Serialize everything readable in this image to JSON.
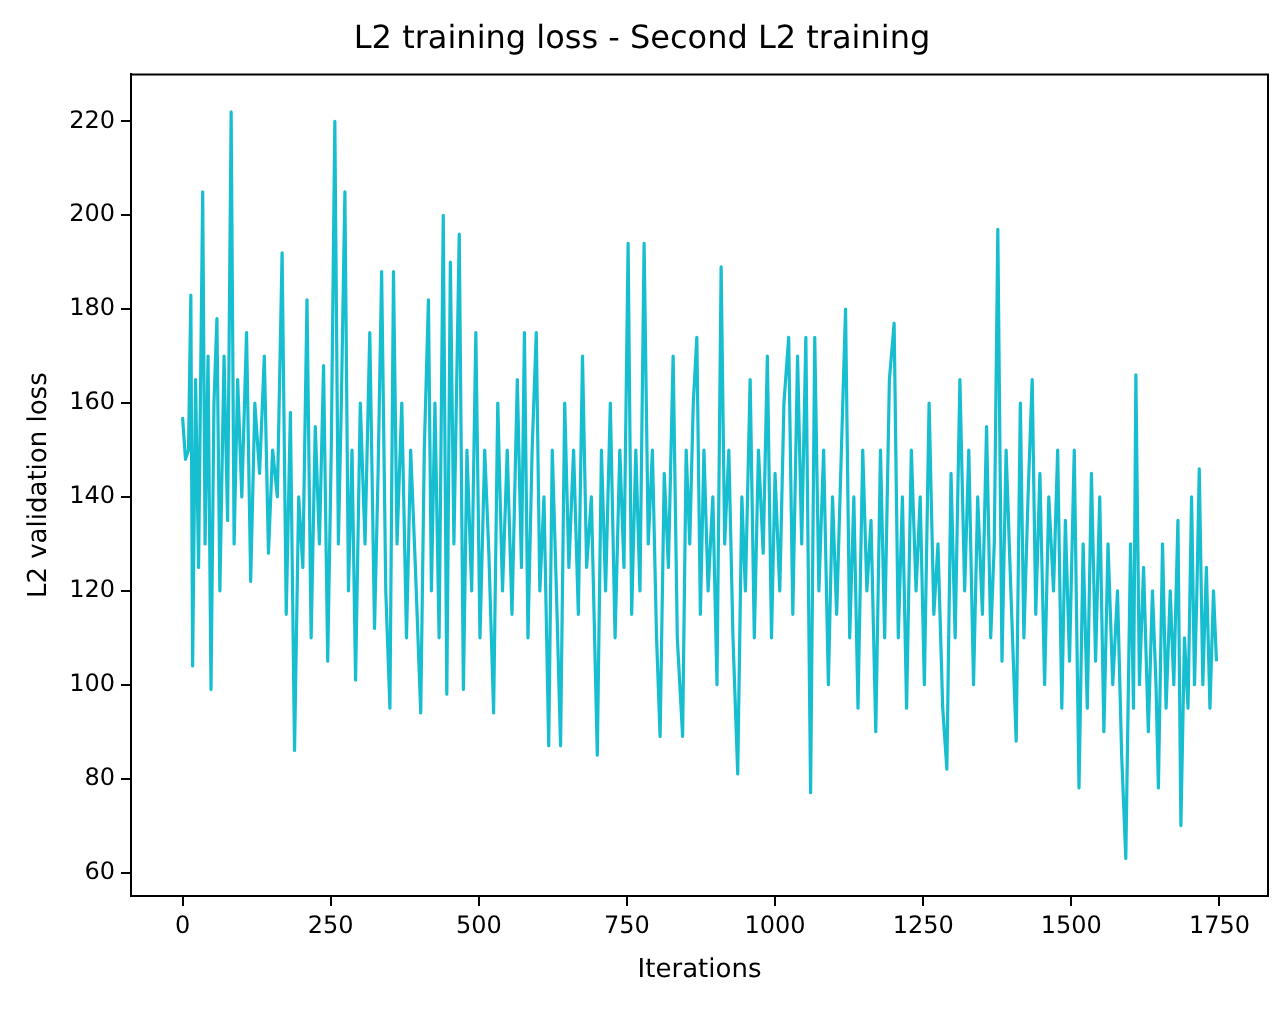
{
  "chart_data": {
    "type": "line",
    "title": "L2 training loss - Second L2 training",
    "xlabel": "Iterations",
    "ylabel": "L2 validation loss",
    "xlim": [
      -87,
      1832
    ],
    "xticks": [
      0,
      250,
      500,
      750,
      1000,
      1250,
      1500,
      1750
    ],
    "ylim": [
      55,
      230
    ],
    "yticks": [
      60,
      80,
      100,
      120,
      140,
      160,
      180,
      200,
      220
    ],
    "grid": false,
    "legend": false,
    "marker": "none",
    "line_style": "solid",
    "x": [
      0,
      5,
      10,
      14,
      17,
      22,
      27,
      34,
      38,
      43,
      48,
      53,
      58,
      63,
      70,
      76,
      82,
      87,
      93,
      100,
      108,
      115,
      122,
      130,
      138,
      145,
      152,
      160,
      168,
      175,
      182,
      189,
      196,
      203,
      210,
      217,
      224,
      231,
      238,
      245,
      251,
      257,
      263,
      268,
      274,
      280,
      286,
      292,
      300,
      308,
      316,
      324,
      330,
      336,
      343,
      350,
      356,
      362,
      370,
      378,
      385,
      393,
      402,
      408,
      415,
      420,
      426,
      433,
      440,
      446,
      452,
      458,
      467,
      474,
      480,
      488,
      495,
      502,
      510,
      517,
      525,
      532,
      540,
      548,
      556,
      565,
      572,
      577,
      583,
      590,
      597,
      603,
      610,
      618,
      624,
      631,
      638,
      645,
      652,
      660,
      668,
      675,
      682,
      690,
      700,
      707,
      714,
      722,
      730,
      738,
      745,
      752,
      758,
      765,
      772,
      779,
      786,
      793,
      800,
      806,
      813,
      820,
      828,
      835,
      844,
      850,
      856,
      862,
      868,
      874,
      880,
      887,
      895,
      902,
      909,
      915,
      922,
      929,
      937,
      944,
      950,
      958,
      965,
      972,
      980,
      987,
      994,
      1000,
      1008,
      1015,
      1023,
      1030,
      1038,
      1045,
      1052,
      1060,
      1067,
      1074,
      1082,
      1090,
      1097,
      1104,
      1112,
      1119,
      1126,
      1133,
      1140,
      1148,
      1155,
      1162,
      1170,
      1178,
      1185,
      1193,
      1201,
      1208,
      1215,
      1222,
      1230,
      1238,
      1245,
      1252,
      1260,
      1268,
      1275,
      1283,
      1290,
      1297,
      1304,
      1312,
      1320,
      1327,
      1335,
      1342,
      1350,
      1357,
      1364,
      1370,
      1376,
      1383,
      1390,
      1398,
      1407,
      1414,
      1420,
      1427,
      1434,
      1440,
      1447,
      1455,
      1462,
      1470,
      1477,
      1484,
      1490,
      1497,
      1505,
      1513,
      1520,
      1527,
      1534,
      1541,
      1548,
      1555,
      1562,
      1570,
      1578,
      1585,
      1592,
      1600,
      1605,
      1609,
      1615,
      1622,
      1630,
      1637,
      1643,
      1647,
      1654,
      1660,
      1667,
      1673,
      1680,
      1685,
      1691,
      1697,
      1703,
      1708,
      1712,
      1716,
      1722,
      1728,
      1734,
      1740,
      1745
    ],
    "series": [
      {
        "color": "#17becf",
        "values": [
          157,
          148,
          150,
          183,
          104,
          165,
          125,
          205,
          130,
          170,
          99,
          160,
          178,
          120,
          170,
          135,
          222,
          130,
          165,
          140,
          175,
          122,
          160,
          145,
          170,
          128,
          150,
          140,
          192,
          115,
          158,
          86,
          140,
          125,
          182,
          110,
          155,
          130,
          168,
          105,
          150,
          220,
          130,
          160,
          205,
          120,
          150,
          101,
          160,
          130,
          175,
          112,
          145,
          188,
          120,
          95,
          188,
          130,
          160,
          110,
          150,
          125,
          94,
          150,
          182,
          120,
          160,
          110,
          200,
          98,
          190,
          130,
          196,
          99,
          150,
          120,
          175,
          110,
          150,
          128,
          94,
          160,
          120,
          150,
          115,
          165,
          125,
          175,
          110,
          150,
          175,
          120,
          140,
          87,
          150,
          120,
          87,
          160,
          125,
          150,
          115,
          170,
          125,
          140,
          85,
          150,
          120,
          160,
          110,
          150,
          125,
          194,
          115,
          150,
          120,
          194,
          130,
          150,
          110,
          89,
          145,
          125,
          170,
          110,
          89,
          150,
          130,
          160,
          174,
          115,
          150,
          120,
          140,
          100,
          189,
          130,
          150,
          110,
          81,
          140,
          120,
          165,
          110,
          150,
          128,
          170,
          110,
          145,
          120,
          160,
          174,
          115,
          170,
          130,
          174,
          77,
          174,
          120,
          150,
          100,
          140,
          115,
          150,
          180,
          110,
          140,
          95,
          150,
          120,
          135,
          90,
          150,
          110,
          165,
          177,
          110,
          140,
          95,
          150,
          120,
          140,
          100,
          160,
          115,
          130,
          95,
          82,
          145,
          110,
          165,
          120,
          150,
          100,
          140,
          115,
          155,
          110,
          130,
          197,
          105,
          150,
          120,
          88,
          160,
          110,
          140,
          165,
          115,
          145,
          100,
          140,
          120,
          150,
          95,
          135,
          105,
          150,
          78,
          130,
          95,
          145,
          105,
          140,
          90,
          130,
          100,
          120,
          85,
          63,
          130,
          95,
          166,
          100,
          125,
          90,
          120,
          100,
          78,
          130,
          95,
          120,
          100,
          135,
          70,
          110,
          95,
          140,
          100,
          120,
          146,
          100,
          125,
          95,
          120,
          105
        ]
      }
    ]
  }
}
